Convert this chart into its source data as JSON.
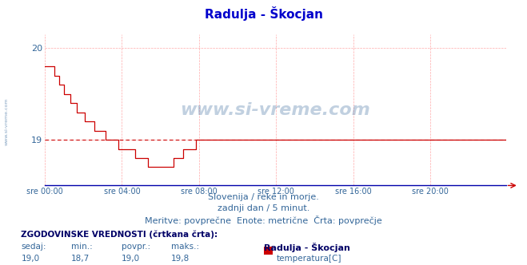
{
  "title": "Radulja - Škocjan",
  "title_color": "#0000cc",
  "bg_color": "#ffffff",
  "plot_bg_color": "#ffffff",
  "grid_color": "#ffaaaa",
  "line_color": "#cc0000",
  "avg_line_color": "#cc0000",
  "tick_color": "#336699",
  "watermark_color": "#336699",
  "xtick_labels": [
    "sre 00:00",
    "sre 04:00",
    "sre 08:00",
    "sre 12:00",
    "sre 16:00",
    "sre 20:00"
  ],
  "xtick_positions": [
    0,
    48,
    96,
    144,
    192,
    240
  ],
  "ylim": [
    18.5,
    20.15
  ],
  "xlim": [
    0,
    287
  ],
  "subtitle1": "Slovenija / reke in morje.",
  "subtitle2": "zadnji dan / 5 minut.",
  "subtitle3": "Meritve: povprečne  Enote: metrične  Črta: povprečje",
  "footer_title": "ZGODOVINSKE VREDNOSTI (črtkana črta):",
  "footer_labels": [
    "sedaj:",
    "min.:",
    "povpr.:",
    "maks.:"
  ],
  "footer_values": [
    "19,0",
    "18,7",
    "19,0",
    "19,8"
  ],
  "legend_label": "Radulja - Škocjan",
  "legend_sublabel": "temperatura[C]",
  "watermark": "www.si-vreme.com",
  "avg_value": 19.0,
  "temperatures": [
    19.8,
    19.8,
    19.8,
    19.8,
    19.8,
    19.8,
    19.7,
    19.7,
    19.7,
    19.6,
    19.6,
    19.6,
    19.5,
    19.5,
    19.5,
    19.5,
    19.4,
    19.4,
    19.4,
    19.4,
    19.3,
    19.3,
    19.3,
    19.3,
    19.3,
    19.2,
    19.2,
    19.2,
    19.2,
    19.2,
    19.2,
    19.1,
    19.1,
    19.1,
    19.1,
    19.1,
    19.1,
    19.1,
    19.0,
    19.0,
    19.0,
    19.0,
    19.0,
    19.0,
    19.0,
    19.0,
    18.9,
    18.9,
    18.9,
    18.9,
    18.9,
    18.9,
    18.9,
    18.9,
    18.9,
    18.9,
    18.8,
    18.8,
    18.8,
    18.8,
    18.8,
    18.8,
    18.8,
    18.8,
    18.7,
    18.7,
    18.7,
    18.7,
    18.7,
    18.7,
    18.7,
    18.7,
    18.7,
    18.7,
    18.7,
    18.7,
    18.7,
    18.7,
    18.7,
    18.7,
    18.8,
    18.8,
    18.8,
    18.8,
    18.8,
    18.8,
    18.9,
    18.9,
    18.9,
    18.9,
    18.9,
    18.9,
    18.9,
    18.9,
    19.0,
    19.0,
    19.0,
    19.0,
    19.0,
    19.0,
    19.0,
    19.0,
    19.0,
    19.0,
    19.0,
    19.0,
    19.0,
    19.0,
    19.0,
    19.0,
    19.0,
    19.0,
    19.0,
    19.0,
    19.0,
    19.0,
    19.0,
    19.0,
    19.0,
    19.0,
    19.0,
    19.0,
    19.0,
    19.0,
    19.0,
    19.0,
    19.0,
    19.0,
    19.0,
    19.0,
    19.0,
    19.0,
    19.0,
    19.0,
    19.0,
    19.0,
    19.0,
    19.0,
    19.0,
    19.0,
    19.0,
    19.0,
    19.0,
    19.0,
    19.0,
    19.0,
    19.0,
    19.0,
    19.0,
    19.0,
    19.0,
    19.0,
    19.0,
    19.0,
    19.0,
    19.0,
    19.0,
    19.0,
    19.0,
    19.0,
    19.0,
    19.0,
    19.0,
    19.0,
    19.0,
    19.0,
    19.0,
    19.0,
    19.0,
    19.0,
    19.0,
    19.0,
    19.0,
    19.0,
    19.0,
    19.0,
    19.0,
    19.0,
    19.0,
    19.0,
    19.0,
    19.0,
    19.0,
    19.0,
    19.0,
    19.0,
    19.0,
    19.0,
    19.0
  ]
}
